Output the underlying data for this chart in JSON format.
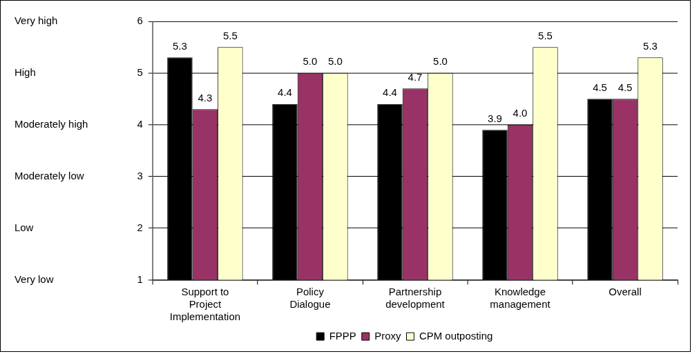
{
  "chart_data": {
    "type": "bar",
    "categories": [
      "Support to Project Implementation",
      "Policy Dialogue",
      "Partnership development",
      "Knowledge management",
      "Overall"
    ],
    "series": [
      {
        "name": "FPPP",
        "color": "#000000",
        "values": [
          5.3,
          4.4,
          4.4,
          3.9,
          4.5
        ],
        "value_labels": [
          "5.3",
          "4.4",
          "4.4",
          "3.9",
          "4.5"
        ]
      },
      {
        "name": "Proxy",
        "color": "#993366",
        "values": [
          4.3,
          5.0,
          4.7,
          4.0,
          4.5
        ],
        "value_labels": [
          "4.3",
          "5.0",
          "4.7",
          "4.0",
          "4.5"
        ]
      },
      {
        "name": "CPM outposting",
        "color": "#ffffcc",
        "values": [
          5.5,
          5.0,
          5.0,
          5.5,
          5.3
        ],
        "value_labels": [
          "5.5",
          "5.0",
          "5.0",
          "5.5",
          "5.3"
        ]
      }
    ],
    "ylim": [
      1,
      6
    ],
    "yticks": [
      1,
      2,
      3,
      4,
      5,
      6
    ],
    "annotations": [
      "Very low",
      "Low",
      "Moderately low",
      "Moderately high",
      "High",
      "Very high"
    ],
    "grid": "y",
    "legend": "bottom"
  }
}
